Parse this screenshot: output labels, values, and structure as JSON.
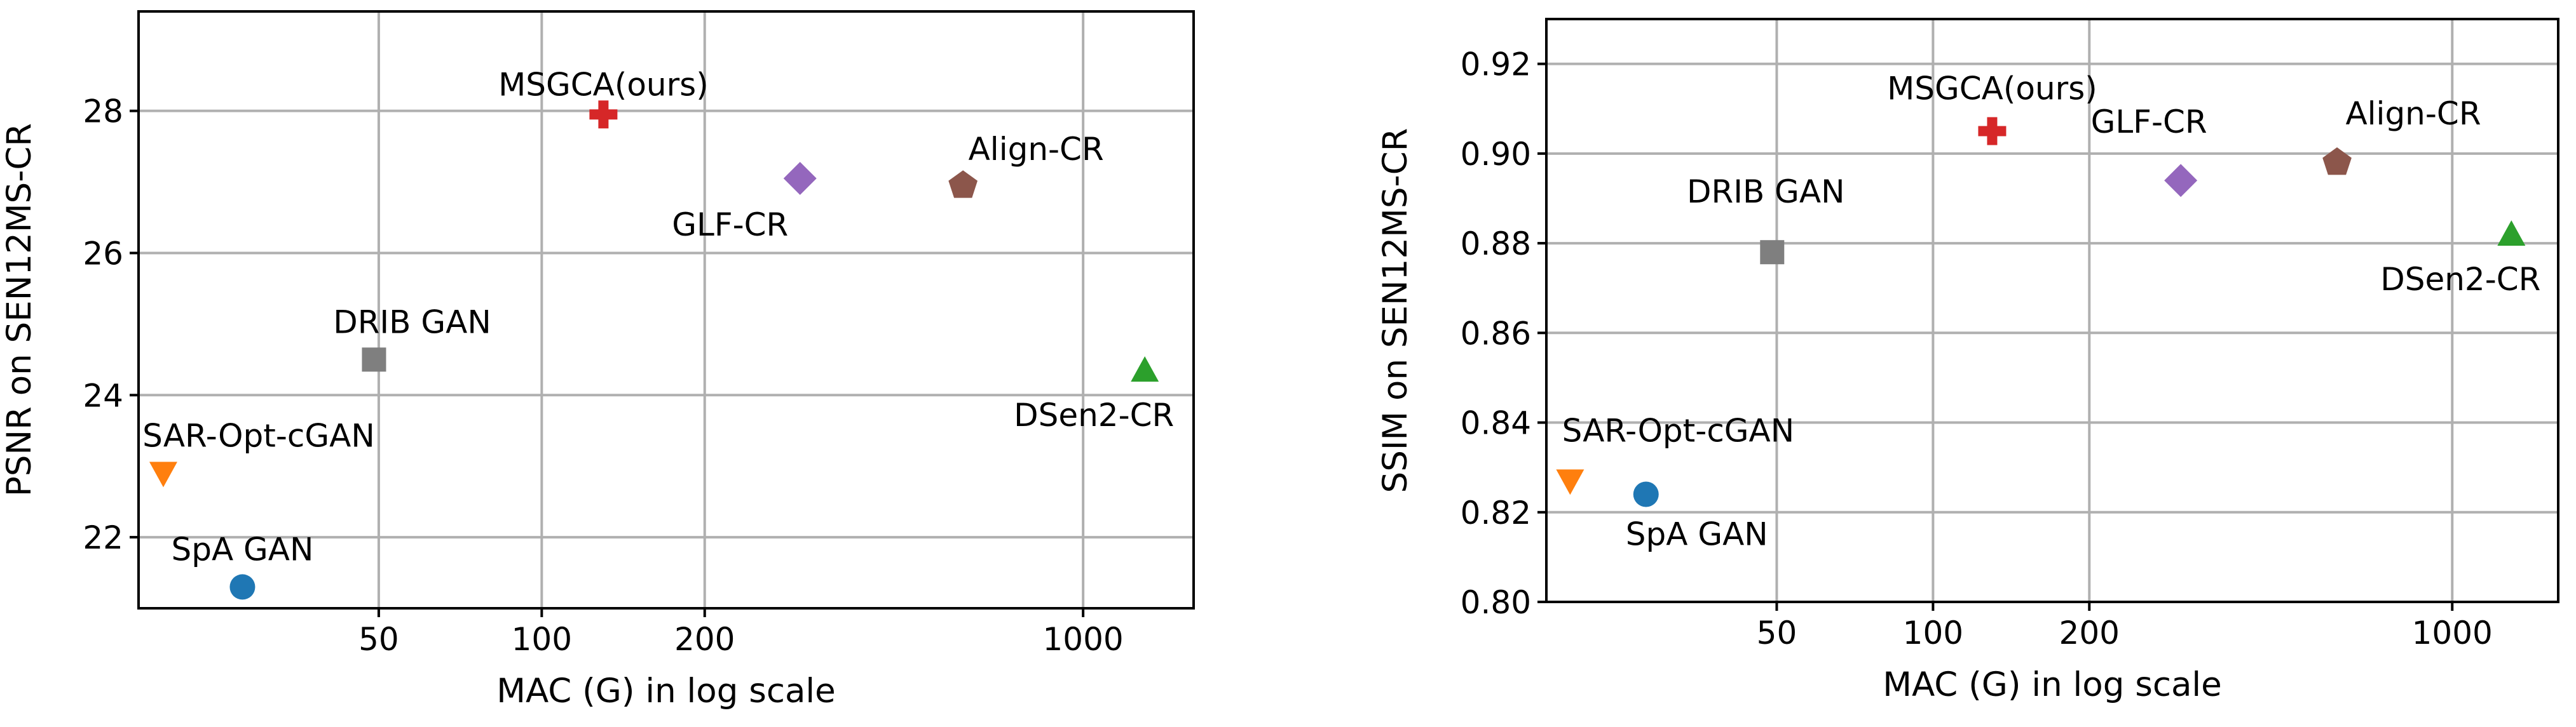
{
  "chart_data": [
    {
      "type": "scatter",
      "title": "",
      "xlabel": "MAC (G) in log scale",
      "ylabel": "PSNR on SEN12MS-CR",
      "x_scale": "log",
      "x_ticks": [
        50,
        100,
        200,
        1000
      ],
      "x_tick_labels": [
        "50",
        "100",
        "200",
        "1000"
      ],
      "xlim": [
        18,
        1600
      ],
      "y_ticks": [
        22,
        24,
        26,
        28
      ],
      "y_tick_labels": [
        "22",
        "24",
        "26",
        "28"
      ],
      "ylim": [
        21.0,
        29.4
      ],
      "grid": true,
      "legend": "none",
      "points": [
        {
          "name": "SpA GAN",
          "label": "SpA GAN",
          "x": 28,
          "y": 21.3,
          "color": "#1f77b4",
          "marker": "circle"
        },
        {
          "name": "SAR-Opt-cGAN",
          "label": "SAR-Opt-cGAN",
          "x": 20,
          "y": 22.9,
          "color": "#ff7f0e",
          "marker": "triangle-down"
        },
        {
          "name": "DRIB GAN",
          "label": "DRIB GAN",
          "x": 49,
          "y": 24.5,
          "color": "#7f7f7f",
          "marker": "square"
        },
        {
          "name": "MSGCA(ours)",
          "label": "MSGCA(ours)",
          "x": 130,
          "y": 27.95,
          "color": "#d62728",
          "marker": "plus"
        },
        {
          "name": "GLF-CR",
          "label": "GLF-CR",
          "x": 300,
          "y": 27.05,
          "color": "#9467bd",
          "marker": "diamond"
        },
        {
          "name": "Align-CR",
          "label": "Align-CR",
          "x": 600,
          "y": 26.95,
          "color": "#8c564b",
          "marker": "pentagon"
        },
        {
          "name": "DSen2-CR",
          "label": "DSen2-CR",
          "x": 1300,
          "y": 24.35,
          "color": "#2ca02c",
          "marker": "triangle-up"
        }
      ]
    },
    {
      "type": "scatter",
      "title": "",
      "xlabel": "MAC (G) in log scale",
      "ylabel": "SSIM on SEN12MS-CR",
      "x_scale": "log",
      "x_ticks": [
        50,
        100,
        200,
        1000
      ],
      "x_tick_labels": [
        "50",
        "100",
        "200",
        "1000"
      ],
      "xlim": [
        18,
        1600
      ],
      "y_ticks": [
        0.8,
        0.82,
        0.84,
        0.86,
        0.88,
        0.9,
        0.92
      ],
      "y_tick_labels": [
        "0.80",
        "0.82",
        "0.84",
        "0.86",
        "0.88",
        "0.90",
        "0.92"
      ],
      "ylim": [
        0.8,
        0.93
      ],
      "grid": true,
      "legend": "none",
      "points": [
        {
          "name": "SpA GAN",
          "label": "SpA GAN",
          "x": 28,
          "y": 0.824,
          "color": "#1f77b4",
          "marker": "circle"
        },
        {
          "name": "SAR-Opt-cGAN",
          "label": "SAR-Opt-cGAN",
          "x": 20,
          "y": 0.827,
          "color": "#ff7f0e",
          "marker": "triangle-down"
        },
        {
          "name": "DRIB GAN",
          "label": "DRIB GAN",
          "x": 49,
          "y": 0.878,
          "color": "#7f7f7f",
          "marker": "square"
        },
        {
          "name": "MSGCA(ours)",
          "label": "MSGCA(ours)",
          "x": 130,
          "y": 0.905,
          "color": "#d62728",
          "marker": "plus"
        },
        {
          "name": "GLF-CR",
          "label": "GLF-CR",
          "x": 300,
          "y": 0.894,
          "color": "#9467bd",
          "marker": "diamond"
        },
        {
          "name": "Align-CR",
          "label": "Align-CR",
          "x": 600,
          "y": 0.898,
          "color": "#8c564b",
          "marker": "pentagon"
        },
        {
          "name": "DSen2-CR",
          "label": "DSen2-CR",
          "x": 1300,
          "y": 0.882,
          "color": "#2ca02c",
          "marker": "triangle-up"
        }
      ]
    }
  ]
}
